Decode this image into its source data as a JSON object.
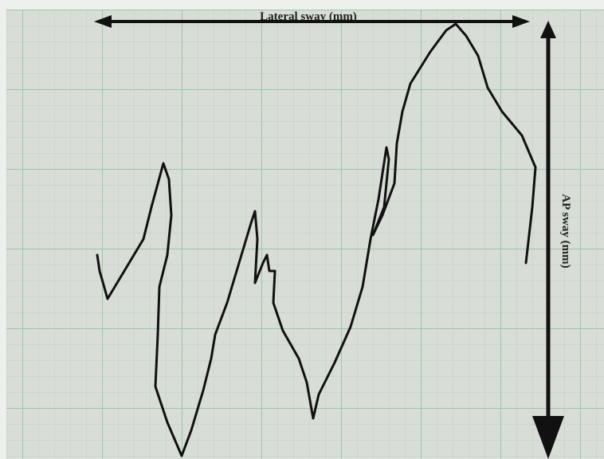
{
  "annotations": {
    "x_axis_label": "Lateral sway (mm)",
    "y_axis_label": "AP sway (mm)"
  }
}
